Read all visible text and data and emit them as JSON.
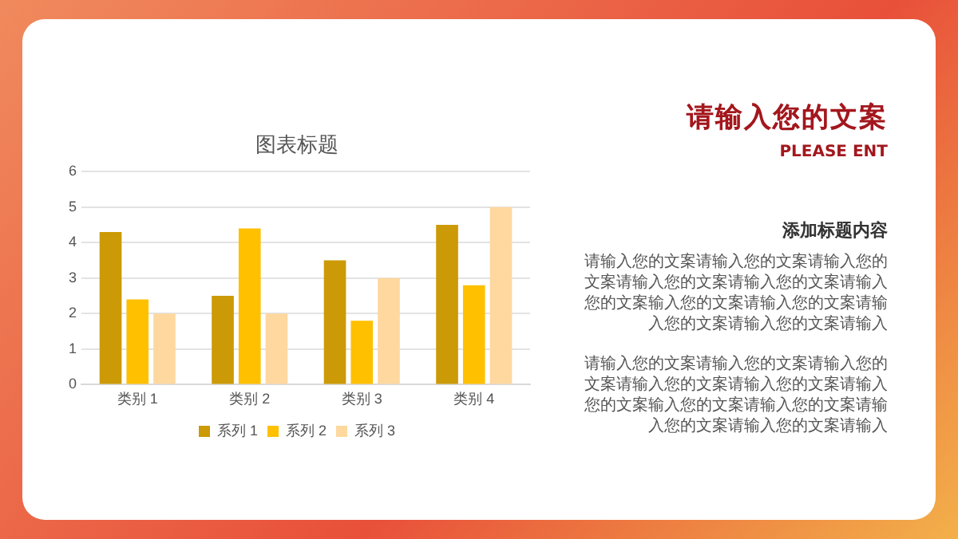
{
  "chart_data": {
    "type": "bar",
    "title": "图表标题",
    "categories": [
      "类别 1",
      "类别 2",
      "类别 3",
      "类别 4"
    ],
    "series": [
      {
        "name": "系列 1",
        "color": "#cc9a06",
        "values": [
          4.3,
          2.5,
          3.5,
          4.5
        ]
      },
      {
        "name": "系列 2",
        "color": "#ffc000",
        "values": [
          2.4,
          4.4,
          1.8,
          2.8
        ]
      },
      {
        "name": "系列 3",
        "color": "#fed89f",
        "values": [
          2,
          2,
          3,
          5
        ]
      }
    ],
    "ylim": [
      0,
      6
    ],
    "yticks": [
      0,
      1,
      2,
      3,
      4,
      5,
      6
    ],
    "grid": "y",
    "legend": "bottom",
    "annotations": [
      "请输入您的文案",
      "PLEASE ENT",
      "添加标题内容",
      "请输入您的文案请输入您的文案请输入您的文案请输入您的文案请输入您的文案请输入您的文案输入您的文案请输入您的文案请输入您的文案请输入您的文案请输入",
      "请输入您的文案请输入您的文案请输入您的文案请输入您的文案请输入您的文案请输入您的文案输入您的文案请输入您的文案请输入您的文案请输入您的文案请输入"
    ]
  }
}
